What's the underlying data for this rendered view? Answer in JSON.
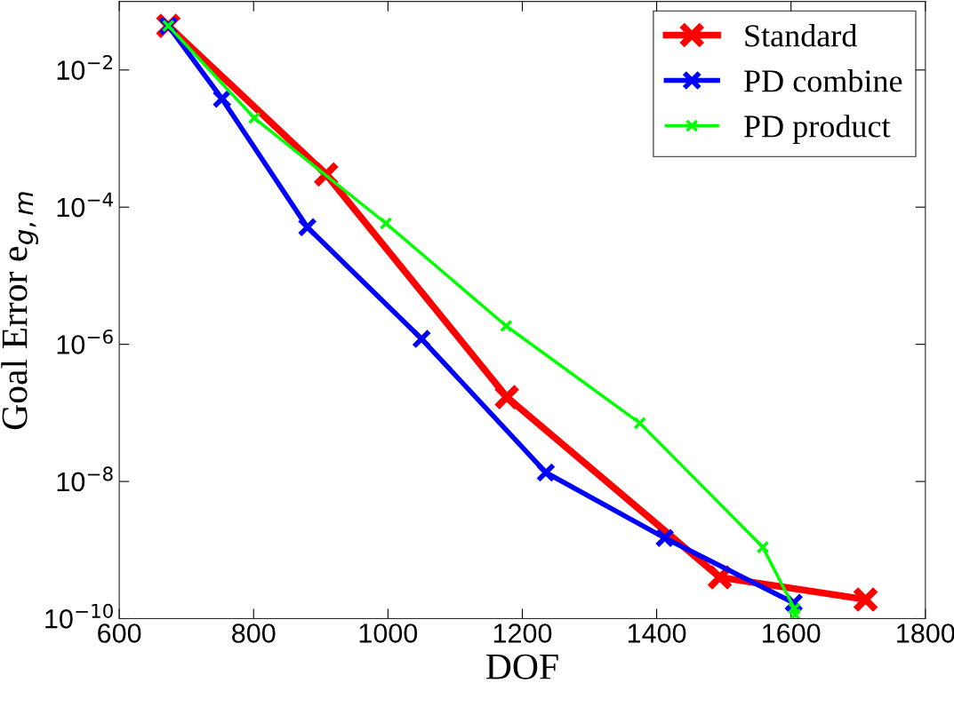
{
  "chart_data": {
    "type": "line",
    "xlabel": "DOF",
    "ylabel": "Goal Error e$_{g,m}$",
    "log": "y",
    "grid": false,
    "legend": "top right",
    "marker": "cross",
    "line_style": "solid",
    "xlim": [
      600,
      1800
    ],
    "xticks": [
      600,
      800,
      1000,
      1200,
      1400,
      1600,
      1800
    ],
    "ylim": [
      1e-10,
      0.1
    ],
    "yticks": [
      {
        "value": 1e-10,
        "label": "10$^{−10}$"
      },
      {
        "value": 1e-08,
        "label": "10$^{−8}$"
      },
      {
        "value": 1e-06,
        "label": "10$^{−6}$"
      },
      {
        "value": 0.0001,
        "label": "10$^{−4}$"
      },
      {
        "value": 0.01,
        "label": "10$^{−2}$"
      }
    ],
    "series": [
      {
        "name": "Standard",
        "color": "#ff0000",
        "x": [
          673,
          908,
          1177,
          1494,
          1711
        ],
        "values": [
          0.044,
          0.0003,
          1.7e-07,
          4e-10,
          1.9e-10
        ]
      },
      {
        "name": "PD combine",
        "color": "#0000ff",
        "x": [
          673,
          753,
          880,
          1050,
          1235,
          1412,
          1604
        ],
        "values": [
          0.044,
          0.0038,
          5.1e-05,
          1.2e-06,
          1.35e-08,
          1.5e-09,
          1.7e-10
        ]
      },
      {
        "name": "PD product",
        "color": "#00ff00",
        "x": [
          673,
          801,
          997,
          1176,
          1375,
          1558,
          1605,
          1606
        ],
        "values": [
          0.044,
          0.002,
          5.8e-05,
          1.85e-06,
          7.1e-08,
          1.1e-09,
          1.4e-10,
          1.15e-10
        ]
      }
    ]
  }
}
